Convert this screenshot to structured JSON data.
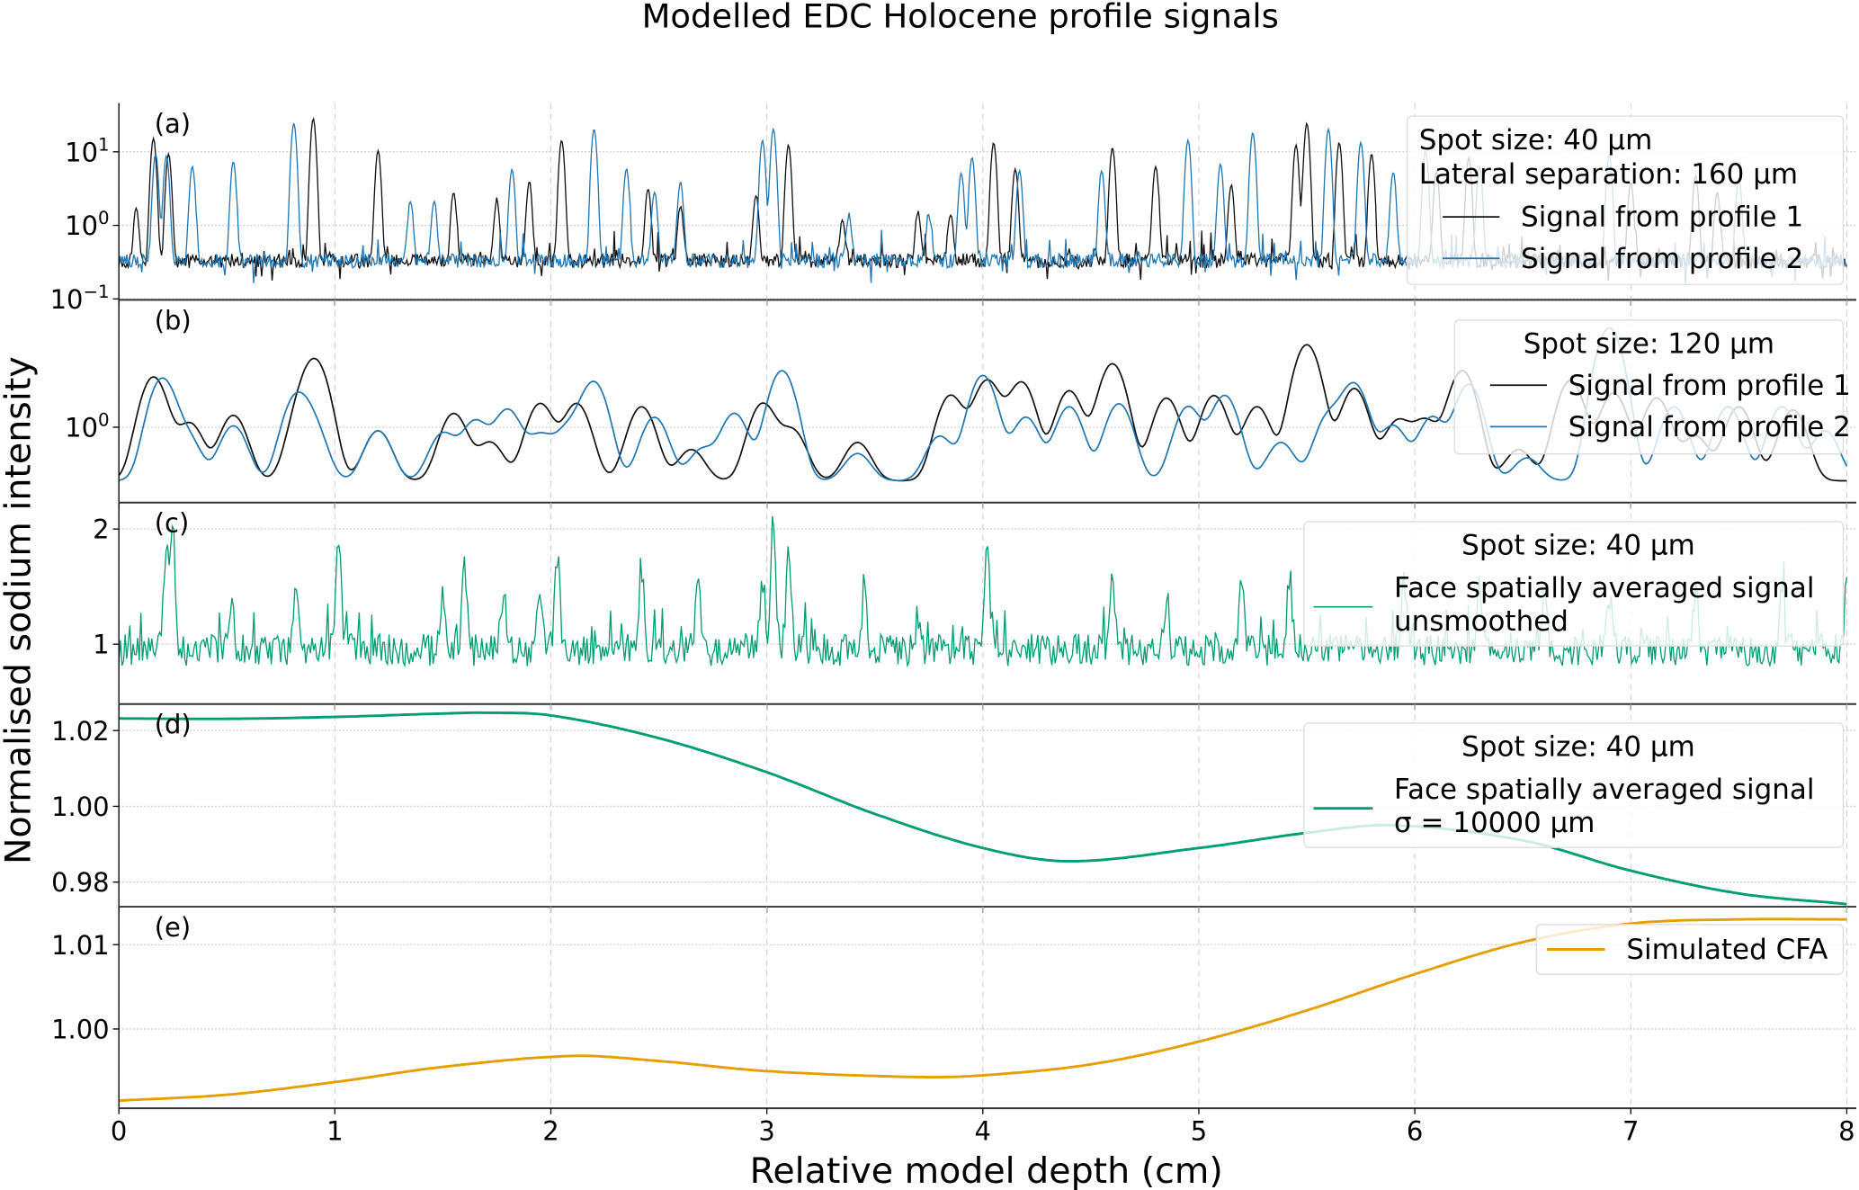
{
  "chart_data": {
    "type": "line",
    "title": "Modelled EDC Holocene profile signals",
    "xlabel": "Relative model depth (cm)",
    "ylabel": "Normalised sodium intensity",
    "xlim": [
      0,
      8
    ],
    "xticks": [
      "0",
      "1",
      "2",
      "3",
      "4",
      "5",
      "6",
      "7",
      "8"
    ],
    "grid": true,
    "panels": [
      {
        "label": "(a)",
        "yscale": "log",
        "ylim": [
          0.097,
          46
        ],
        "yticks": [
          {
            "value": 10,
            "base": "10",
            "exp": "1"
          },
          {
            "value": 1,
            "base": "10",
            "exp": "0"
          },
          {
            "value": 0.1,
            "base": "10",
            "exp": "−1"
          }
        ],
        "legend": {
          "position": "upper-right",
          "title": [
            "Spot size: 40 µm",
            "Lateral separation: 160 µm"
          ],
          "entries": [
            "Signal from profile 1",
            "Signal from profile 2"
          ]
        },
        "series": [
          {
            "name": "Signal from profile 1",
            "color": "#111111",
            "baseline": 0.33,
            "peaks": [
              [
                0.08,
                1.4
              ],
              [
                0.16,
                15
              ],
              [
                0.23,
                9
              ],
              [
                0.9,
                28
              ],
              [
                1.2,
                10
              ],
              [
                1.55,
                2.5
              ],
              [
                1.75,
                1.8
              ],
              [
                1.9,
                3.5
              ],
              [
                2.05,
                14
              ],
              [
                2.45,
                2.8
              ],
              [
                2.6,
                1.5
              ],
              [
                2.95,
                2.2
              ],
              [
                3.1,
                12
              ],
              [
                3.35,
                0.9
              ],
              [
                3.7,
                1.2
              ],
              [
                3.85,
                1.1
              ],
              [
                4.05,
                13
              ],
              [
                4.15,
                5.5
              ],
              [
                4.6,
                11
              ],
              [
                4.8,
                6
              ],
              [
                5.15,
                3.2
              ],
              [
                5.45,
                12
              ],
              [
                5.5,
                24
              ],
              [
                5.65,
                13
              ],
              [
                5.8,
                9
              ],
              [
                6.1,
                5
              ],
              [
                6.25,
                8
              ],
              [
                7.0,
                3.5
              ],
              [
                7.3,
                4.5
              ],
              [
                7.4,
                2.5
              ]
            ]
          },
          {
            "name": "Signal from profile 2",
            "color": "#1f77b4",
            "baseline": 0.33,
            "peaks": [
              [
                0.17,
                9
              ],
              [
                0.22,
                8.5
              ],
              [
                0.34,
                6
              ],
              [
                0.53,
                7
              ],
              [
                0.81,
                24
              ],
              [
                1.35,
                1.8
              ],
              [
                1.46,
                1.8
              ],
              [
                1.82,
                5.5
              ],
              [
                2.2,
                20
              ],
              [
                2.35,
                5.5
              ],
              [
                2.48,
                2.5
              ],
              [
                2.6,
                3.6
              ],
              [
                2.98,
                14
              ],
              [
                3.03,
                20
              ],
              [
                3.38,
                1.0
              ],
              [
                3.75,
                1.0
              ],
              [
                3.9,
                4.8
              ],
              [
                3.95,
                8
              ],
              [
                4.17,
                5.2
              ],
              [
                4.55,
                5.2
              ],
              [
                4.95,
                14
              ],
              [
                5.1,
                6.5
              ],
              [
                5.25,
                18
              ],
              [
                5.6,
                20
              ],
              [
                5.75,
                13
              ],
              [
                5.9,
                5
              ],
              [
                6.05,
                10
              ],
              [
                6.3,
                6
              ],
              [
                6.9,
                9
              ],
              [
                7.5,
                4
              ]
            ]
          }
        ]
      },
      {
        "label": "(b)",
        "yscale": "log",
        "ylim": [
          0.21,
          14
        ],
        "yticks": [
          {
            "value": 1,
            "base": "10",
            "exp": "0"
          }
        ],
        "legend": {
          "position": "upper-right",
          "title": [
            "Spot size: 120 µm"
          ],
          "entries": [
            "Signal from profile 1",
            "Signal from profile 2"
          ]
        },
        "series": [
          {
            "name": "Signal from profile 1",
            "color": "#111111",
            "baseline": 0.33,
            "peaks": [
              [
                0.16,
                2.5
              ],
              [
                0.33,
                0.75
              ],
              [
                0.53,
                0.95
              ],
              [
                0.84,
                0.7
              ],
              [
                0.91,
                3.5
              ],
              [
                1.2,
                0.6
              ],
              [
                1.55,
                1.0
              ],
              [
                1.72,
                0.4
              ],
              [
                1.95,
                1.3
              ],
              [
                2.12,
                1.3
              ],
              [
                2.42,
                1.2
              ],
              [
                2.65,
                0.3
              ],
              [
                2.98,
                1.3
              ],
              [
                3.12,
                0.6
              ],
              [
                3.42,
                0.4
              ],
              [
                3.85,
                1.6
              ],
              [
                4.02,
                2.3
              ],
              [
                4.18,
                2.2
              ],
              [
                4.4,
                1.8
              ],
              [
                4.6,
                3.4
              ],
              [
                4.85,
                1.5
              ],
              [
                5.07,
                1.6
              ],
              [
                5.27,
                1.2
              ],
              [
                5.5,
                5.2
              ],
              [
                5.72,
                1.9
              ],
              [
                5.92,
                0.8
              ],
              [
                6.05,
                0.8
              ],
              [
                6.22,
                2.9
              ],
              [
                6.48,
                0.3
              ],
              [
                6.72,
                2.3
              ],
              [
                6.92,
                1.7
              ],
              [
                7.12,
                1.5
              ],
              [
                7.3,
                0.5
              ],
              [
                7.5,
                1.2
              ],
              [
                7.75,
                1.1
              ]
            ]
          },
          {
            "name": "Signal from profile 2",
            "color": "#1f77b4",
            "baseline": 0.33,
            "peaks": [
              [
                0.2,
                2.4
              ],
              [
                0.32,
                0.45
              ],
              [
                0.53,
                0.7
              ],
              [
                0.82,
                1.5
              ],
              [
                0.9,
                0.6
              ],
              [
                1.2,
                0.6
              ],
              [
                1.5,
                0.55
              ],
              [
                1.65,
                0.8
              ],
              [
                1.8,
                1.1
              ],
              [
                1.95,
                0.5
              ],
              [
                2.08,
                0.6
              ],
              [
                2.2,
                2.2
              ],
              [
                2.48,
                0.9
              ],
              [
                2.7,
                0.3
              ],
              [
                2.85,
                1.0
              ],
              [
                3.07,
                2.9
              ],
              [
                3.42,
                0.25
              ],
              [
                3.8,
                0.5
              ],
              [
                4.0,
                2.6
              ],
              [
                4.2,
                0.9
              ],
              [
                4.4,
                1.2
              ],
              [
                4.63,
                1.3
              ],
              [
                4.95,
                1.2
              ],
              [
                5.12,
                1.6
              ],
              [
                5.38,
                0.4
              ],
              [
                5.6,
                0.9
              ],
              [
                5.72,
                2.1
              ],
              [
                5.9,
                0.7
              ],
              [
                6.08,
                0.9
              ],
              [
                6.25,
                2.1
              ],
              [
                6.52,
                0.2
              ],
              [
                6.9,
                7.5
              ],
              [
                7.2,
                1.2
              ],
              [
                7.45,
                1.2
              ],
              [
                7.7,
                1.2
              ],
              [
                7.9,
                0.6
              ]
            ]
          }
        ]
      },
      {
        "label": "(c)",
        "yscale": "linear",
        "ylim": [
          0.48,
          2.23
        ],
        "yticks": [
          {
            "value": 2,
            "base": "2"
          },
          {
            "value": 1,
            "base": "1"
          }
        ],
        "legend": {
          "position": "upper-right",
          "title": [
            "Spot size: 40 µm"
          ],
          "entries": [
            "Face spatially averaged signal",
            "unsmoothed"
          ]
        },
        "series": [
          {
            "name": "Face spatially averaged signal unsmoothed",
            "color": "#009e73",
            "baseline": 0.95,
            "peaks": [
              [
                0.22,
                0.9
              ],
              [
                0.25,
                1.0
              ],
              [
                0.52,
                0.4
              ],
              [
                0.82,
                0.6
              ],
              [
                1.02,
                0.9
              ],
              [
                1.5,
                0.55
              ],
              [
                1.6,
                0.7
              ],
              [
                1.78,
                0.5
              ],
              [
                1.95,
                0.6
              ],
              [
                2.03,
                0.8
              ],
              [
                2.42,
                0.7
              ],
              [
                2.68,
                0.55
              ],
              [
                2.98,
                0.6
              ],
              [
                3.03,
                1.1
              ],
              [
                3.1,
                0.8
              ],
              [
                3.45,
                0.45
              ],
              [
                3.7,
                0.3
              ],
              [
                4.02,
                0.85
              ],
              [
                4.6,
                0.55
              ],
              [
                4.85,
                0.35
              ],
              [
                5.2,
                0.6
              ],
              [
                5.42,
                0.65
              ],
              [
                5.95,
                0.6
              ],
              [
                6.3,
                0.6
              ],
              [
                6.6,
                0.5
              ],
              [
                6.9,
                0.4
              ],
              [
                7.3,
                0.5
              ],
              [
                7.7,
                0.5
              ],
              [
                8.0,
                0.5
              ]
            ]
          }
        ]
      },
      {
        "label": "(d)",
        "yscale": "linear",
        "ylim": [
          0.9735,
          1.027
        ],
        "yticks": [
          {
            "value": 1.02,
            "base": "1.02"
          },
          {
            "value": 1.0,
            "base": "1.00"
          },
          {
            "value": 0.98,
            "base": "0.98"
          }
        ],
        "legend": {
          "position": "upper-right",
          "title": [
            "Spot size: 40 µm"
          ],
          "entries": [
            "Face spatially averaged signal",
            "σ = 10000 µm"
          ]
        },
        "series": [
          {
            "name": "Face spatially averaged signal σ = 10000 µm",
            "color": "#009e73",
            "x": [
              0,
              0.5,
              1,
              1.5,
              1.7,
              2,
              2.5,
              3,
              3.5,
              4,
              4.4,
              5,
              5.5,
              5.9,
              6.5,
              7,
              7.5,
              8
            ],
            "y": [
              1.0232,
              1.0231,
              1.0236,
              1.0245,
              1.0247,
              1.024,
              1.018,
              1.009,
              0.998,
              0.989,
              0.9855,
              0.989,
              0.993,
              0.995,
              0.991,
              0.983,
              0.977,
              0.9742
            ]
          }
        ]
      },
      {
        "label": "(e)",
        "yscale": "linear",
        "ylim": [
          0.9906,
          1.0145
        ],
        "yticks": [
          {
            "value": 1.01,
            "base": "1.01"
          },
          {
            "value": 1.0,
            "base": "1.00"
          }
        ],
        "legend": {
          "position": "upper-right",
          "title": [],
          "entries": [
            "Simulated CFA"
          ]
        },
        "series": [
          {
            "name": "Simulated CFA",
            "color": "#e69f00",
            "x": [
              0,
              0.5,
              1,
              1.5,
              2.1,
              2.5,
              3,
              3.7,
              4,
              4.5,
              5,
              5.5,
              6,
              6.5,
              7,
              7.5,
              8
            ],
            "y": [
              0.9915,
              0.9922,
              0.9937,
              0.9955,
              0.9968,
              0.9962,
              0.995,
              0.9943,
              0.9945,
              0.9958,
              0.9985,
              1.0022,
              1.0065,
              1.0103,
              1.0125,
              1.013,
              1.013
            ]
          }
        ]
      }
    ]
  }
}
